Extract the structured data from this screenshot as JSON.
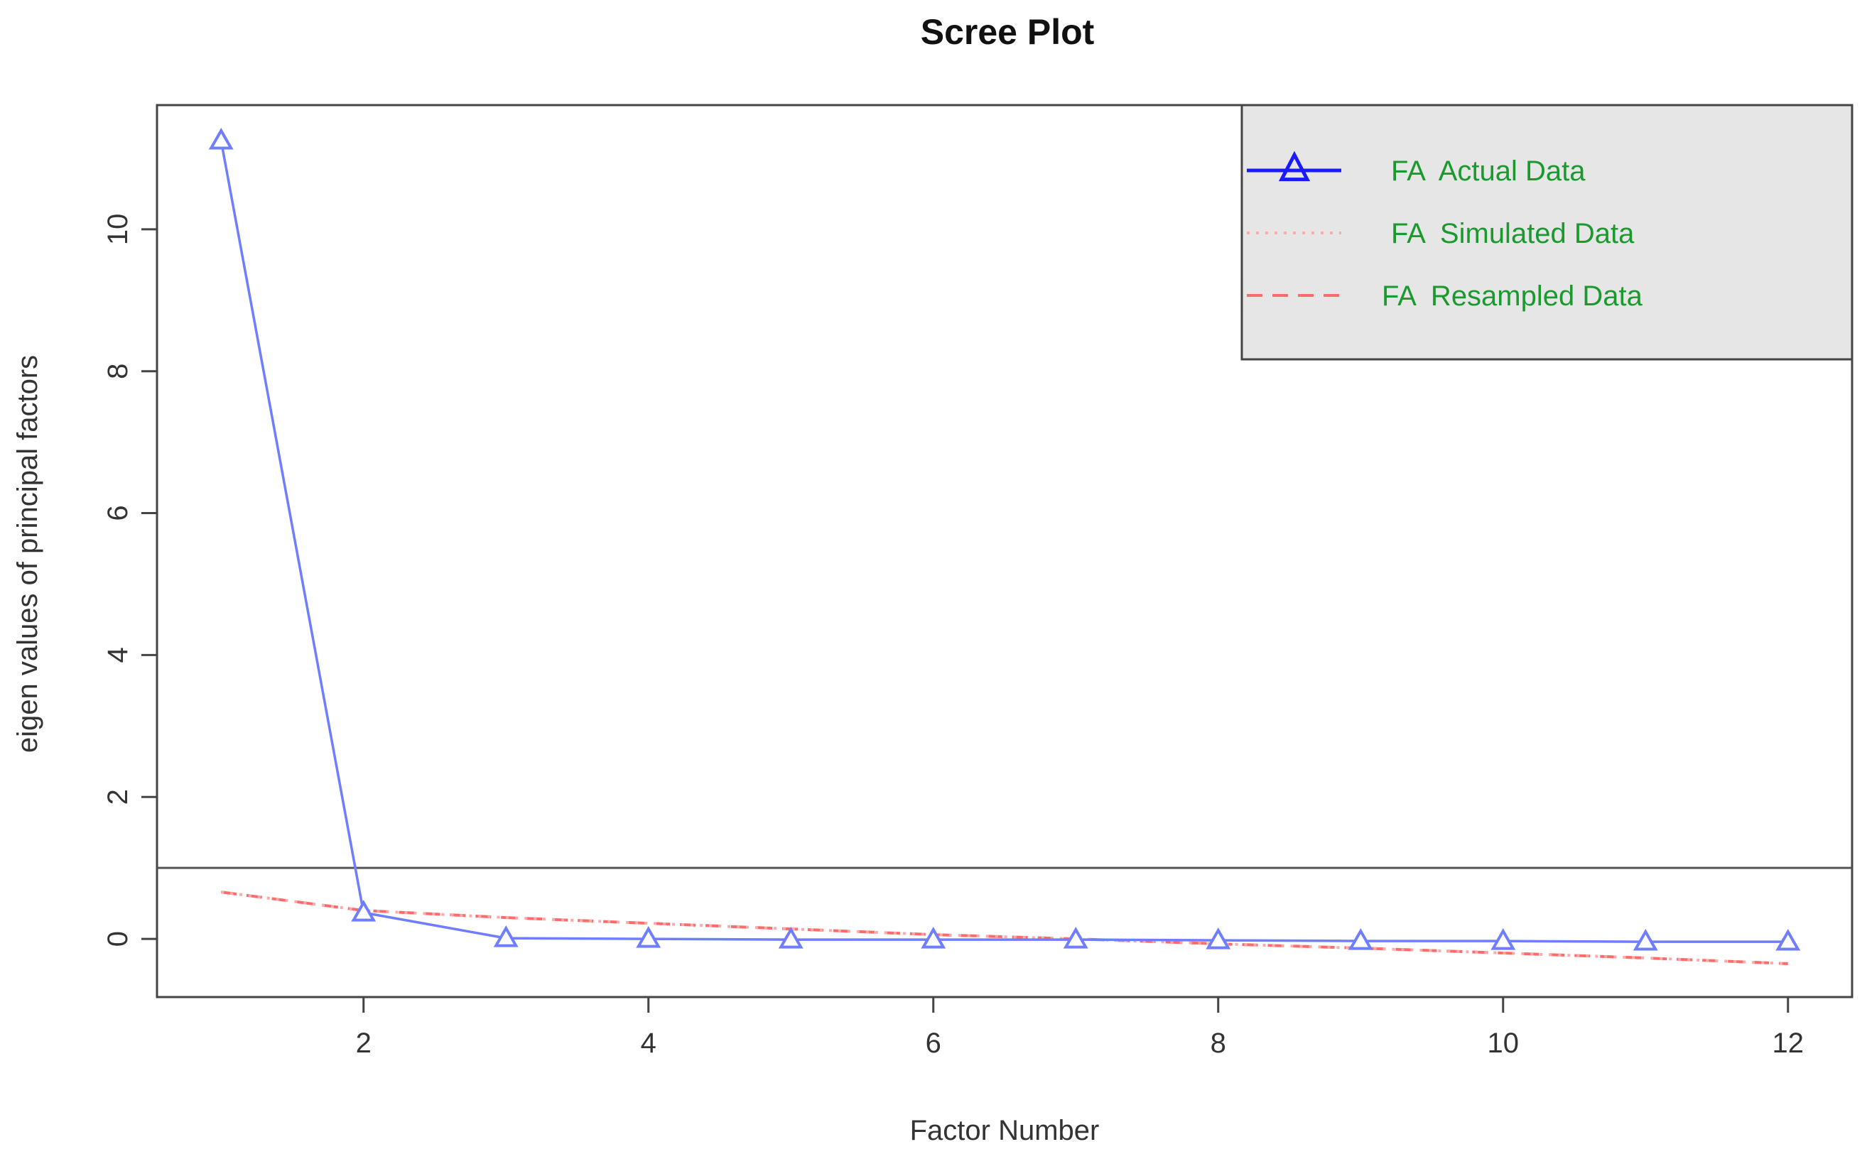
{
  "chart_data": {
    "type": "line",
    "title": "Scree Plot",
    "xlabel": "Factor Number",
    "ylabel": "eigen values of principal factors",
    "xlim": [
      0.55,
      12.45
    ],
    "ylim": [
      -0.82,
      11.75
    ],
    "x_ticks": [
      2,
      4,
      6,
      8,
      10,
      12
    ],
    "y_ticks": [
      0,
      2,
      4,
      6,
      8,
      10
    ],
    "x_tick_labels": [
      "2",
      "4",
      "6",
      "8",
      "10",
      "12"
    ],
    "y_tick_labels": [
      "0",
      "2",
      "4",
      "6",
      "8",
      "10"
    ],
    "hline": 1,
    "grid": false,
    "legend_position": "top-right",
    "x": [
      1,
      2,
      3,
      4,
      5,
      6,
      7,
      8,
      9,
      10,
      11,
      12
    ],
    "series": [
      {
        "name": "FA  Actual Data",
        "style": "solid",
        "marker": "triangle",
        "color": "#6f7dff",
        "values": [
          11.25,
          0.37,
          0.01,
          0.0,
          -0.01,
          -0.01,
          -0.01,
          -0.02,
          -0.03,
          -0.03,
          -0.04,
          -0.04
        ]
      },
      {
        "name": "FA  Simulated Data",
        "style": "dotted",
        "marker": "none",
        "color": "#ffaaaa",
        "values": [
          0.66,
          0.4,
          0.3,
          0.22,
          0.14,
          0.06,
          0.0,
          -0.07,
          -0.13,
          -0.2,
          -0.27,
          -0.35
        ]
      },
      {
        "name": "FA  Resampled Data",
        "style": "dashed",
        "marker": "none",
        "color": "#ff6b6b",
        "values": [
          0.66,
          0.4,
          0.3,
          0.22,
          0.14,
          0.06,
          0.0,
          -0.07,
          -0.13,
          -0.2,
          -0.27,
          -0.35
        ]
      }
    ],
    "colors": {
      "legend_bg": "#e6e6e6",
      "legend_text": "#1a9a2e",
      "legend_actual_line": "#1a1aff",
      "axis": "#444444",
      "hline": "#555555"
    }
  }
}
